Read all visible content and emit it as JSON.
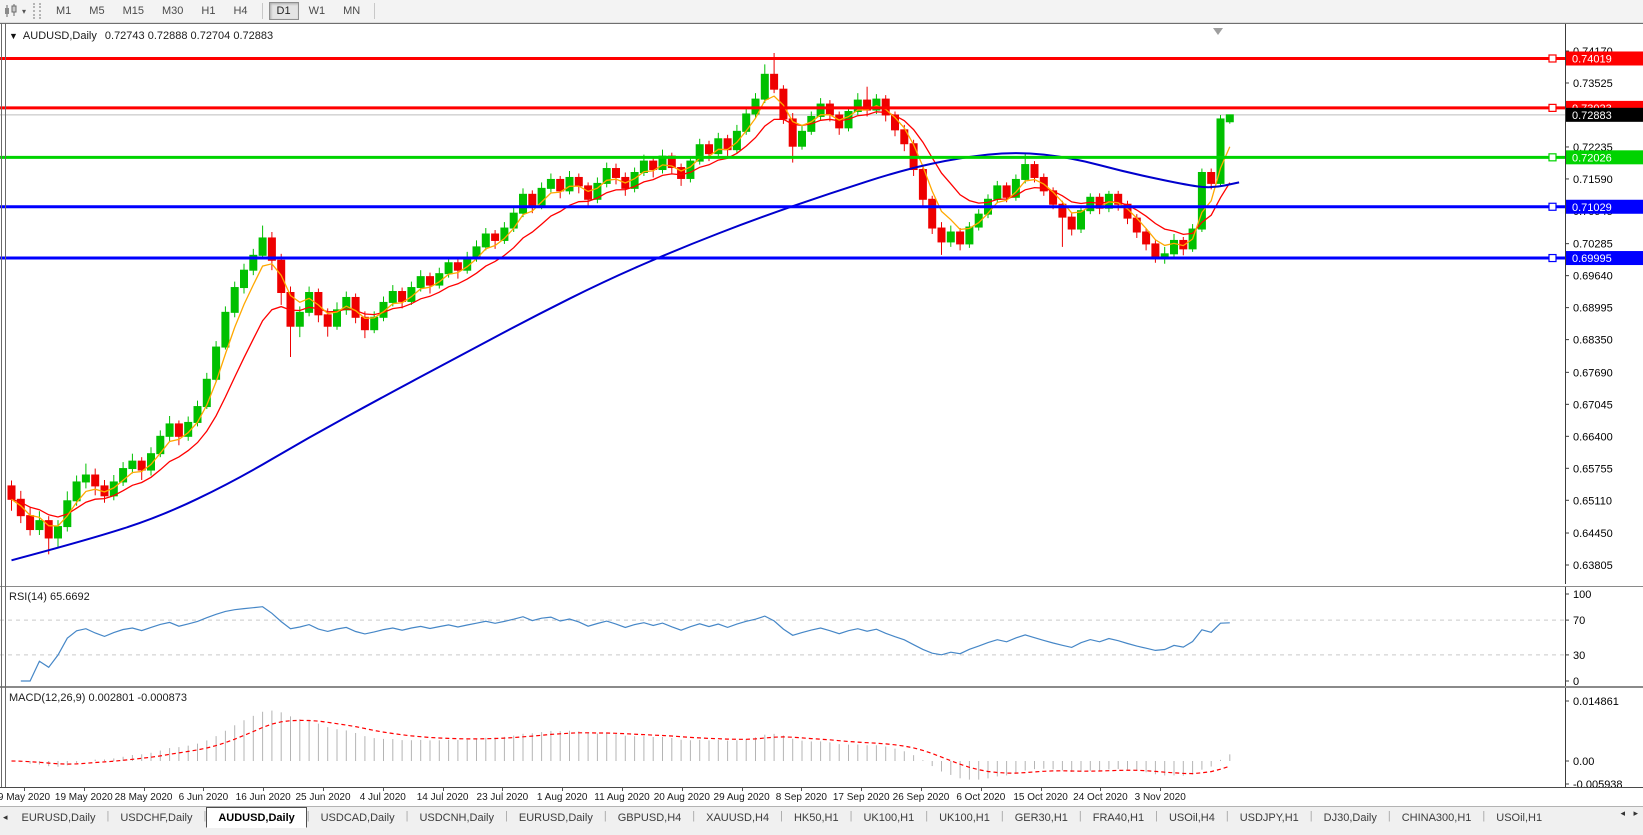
{
  "toolbar": {
    "timeframes": [
      "M1",
      "M5",
      "M15",
      "M30",
      "H1",
      "H4",
      "D1",
      "W1",
      "MN"
    ],
    "active_timeframe": "D1",
    "dropdown_icon": "▾"
  },
  "chart": {
    "symbol_title": "AUDUSD,Daily",
    "ohlc_display": "0.72743 0.72888 0.72704 0.72883",
    "collapse_icon": "▼"
  },
  "price_axis": {
    "labels": [
      "0.74170",
      "0.73525",
      "0.72880",
      "0.72235",
      "0.71590",
      "0.70945",
      "0.70285",
      "0.69640",
      "0.68995",
      "0.68350",
      "0.67690",
      "0.67045",
      "0.66400",
      "0.65755",
      "0.65110",
      "0.64450",
      "0.63805"
    ]
  },
  "price_tags": [
    {
      "value": "0.74019",
      "color": "#FF0000"
    },
    {
      "value": "0.73023",
      "color": "#FF0000"
    },
    {
      "value": "0.72883",
      "color": "#000000"
    },
    {
      "value": "0.72026",
      "color": "#00D300"
    },
    {
      "value": "0.71029",
      "color": "#0000FF"
    },
    {
      "value": "0.69995",
      "color": "#0000FF"
    }
  ],
  "hlines": [
    {
      "price": 0.74019,
      "color": "#FF0000"
    },
    {
      "price": 0.73023,
      "color": "#FF0000"
    },
    {
      "price": 0.72026,
      "color": "#00D300"
    },
    {
      "price": 0.71029,
      "color": "#0000FF"
    },
    {
      "price": 0.69995,
      "color": "#0000FF"
    }
  ],
  "current_price": {
    "value": 0.72883,
    "line_color": "#BDBDBD",
    "tag_color": "#000000"
  },
  "time_axis": {
    "labels": [
      "9 May 2020",
      "19 May 2020",
      "28 May 2020",
      "6 Jun 2020",
      "16 Jun 2020",
      "25 Jun 2020",
      "4 Jul 2020",
      "14 Jul 2020",
      "23 Jul 2020",
      "1 Aug 2020",
      "11 Aug 2020",
      "20 Aug 2020",
      "29 Aug 2020",
      "8 Sep 2020",
      "17 Sep 2020",
      "26 Sep 2020",
      "6 Oct 2020",
      "15 Oct 2020",
      "24 Oct 2020",
      "3 Nov 2020"
    ]
  },
  "rsi_panel": {
    "label": "RSI(14) 65.6692",
    "period": 14,
    "value": 65.6692,
    "axis_labels": [
      "100",
      "70",
      "30",
      "0"
    ],
    "axis_values": [
      100,
      70,
      30,
      0
    ],
    "upper_level": 70,
    "lower_level": 30,
    "line_color": "#4687C7",
    "level_color": "#C9C9C9"
  },
  "macd_panel": {
    "label": "MACD(12,26,9) 0.002801 -0.000873",
    "fast": 12,
    "slow": 26,
    "signal": 9,
    "macd_value": 0.002801,
    "signal_value": -0.000873,
    "axis_labels": [
      "0.014861",
      "0.00",
      "-0.005938"
    ],
    "axis_max": 0.014861,
    "axis_min": -0.005938,
    "histogram_color": "#B4B4B4",
    "signal_color": "#FF0000"
  },
  "tabs": {
    "left_arrow": "◂",
    "right_arrows": "◂ ▸",
    "items": [
      {
        "label": "EURUSD,Daily",
        "active": false
      },
      {
        "label": "USDCHF,Daily",
        "active": false
      },
      {
        "label": "AUDUSD,Daily",
        "active": true
      },
      {
        "label": "USDCAD,Daily",
        "active": false
      },
      {
        "label": "USDCNH,Daily",
        "active": false
      },
      {
        "label": "EURUSD,Daily",
        "active": false
      },
      {
        "label": "GBPUSD,H4",
        "active": false
      },
      {
        "label": "XAUUSD,H4",
        "active": false
      },
      {
        "label": "HK50,H1",
        "active": false
      },
      {
        "label": "UK100,H1",
        "active": false
      },
      {
        "label": "UK100,H1",
        "active": false
      },
      {
        "label": "GER30,H1",
        "active": false
      },
      {
        "label": "FRA40,H1",
        "active": false
      },
      {
        "label": "USOil,H4",
        "active": false
      },
      {
        "label": "USDJPY,H1",
        "active": false
      },
      {
        "label": "DJ30,Daily",
        "active": false
      },
      {
        "label": "CHINA300,H1",
        "active": false
      },
      {
        "label": "USOil,H1",
        "active": false
      }
    ]
  },
  "colors": {
    "bull": "#00C000",
    "bear": "#EE0000",
    "ma_fast": "#FFA800",
    "ma_mid": "#FF0000",
    "ma_slow": "#0000CD",
    "axis_text": "#000000",
    "shift_marker": "#9E9E9E"
  },
  "chart_data": {
    "type": "candlestick",
    "symbol": "AUDUSD",
    "timeframe": "Daily",
    "title": "AUDUSD,Daily",
    "current_bar_ohlc": {
      "open": 0.72743,
      "high": 0.72888,
      "low": 0.72704,
      "close": 0.72883
    },
    "y_axis_top": 0.7417,
    "y_axis_bottom": 0.63805,
    "x_tick_labels": [
      "9 May 2020",
      "19 May 2020",
      "28 May 2020",
      "6 Jun 2020",
      "16 Jun 2020",
      "25 Jun 2020",
      "4 Jul 2020",
      "14 Jul 2020",
      "23 Jul 2020",
      "1 Aug 2020",
      "11 Aug 2020",
      "20 Aug 2020",
      "29 Aug 2020",
      "8 Sep 2020",
      "17 Sep 2020",
      "26 Sep 2020",
      "6 Oct 2020",
      "15 Oct 2020",
      "24 Oct 2020",
      "3 Nov 2020"
    ],
    "ma_fast_period": 4,
    "ma_mid_period": 10,
    "ma_slow_points": [
      [
        0,
        0.639
      ],
      [
        8,
        0.643
      ],
      [
        16,
        0.6478
      ],
      [
        24,
        0.655
      ],
      [
        32,
        0.6638
      ],
      [
        40,
        0.672
      ],
      [
        48,
        0.68
      ],
      [
        56,
        0.688
      ],
      [
        64,
        0.6955
      ],
      [
        72,
        0.702
      ],
      [
        80,
        0.7078
      ],
      [
        88,
        0.713
      ],
      [
        96,
        0.7178
      ],
      [
        102,
        0.7202
      ],
      [
        108,
        0.7214
      ],
      [
        114,
        0.7202
      ],
      [
        120,
        0.7172
      ],
      [
        126,
        0.7148
      ],
      [
        129,
        0.714
      ],
      [
        132,
        0.7152
      ]
    ],
    "candles": [
      [
        0.654,
        0.6551,
        0.649,
        0.6513
      ],
      [
        0.6513,
        0.653,
        0.6465,
        0.648
      ],
      [
        0.648,
        0.6498,
        0.644,
        0.6452
      ],
      [
        0.6452,
        0.6489,
        0.6441,
        0.647
      ],
      [
        0.647,
        0.6479,
        0.6402,
        0.6435
      ],
      [
        0.6435,
        0.6471,
        0.6415,
        0.6458
      ],
      [
        0.6458,
        0.6529,
        0.6448,
        0.651
      ],
      [
        0.651,
        0.6561,
        0.65,
        0.6548
      ],
      [
        0.6548,
        0.6585,
        0.6535,
        0.6562
      ],
      [
        0.6562,
        0.6575,
        0.6521,
        0.654
      ],
      [
        0.654,
        0.6552,
        0.6506,
        0.652
      ],
      [
        0.652,
        0.6562,
        0.6511,
        0.6548
      ],
      [
        0.6548,
        0.6588,
        0.654,
        0.6575
      ],
      [
        0.6575,
        0.6605,
        0.6565,
        0.659
      ],
      [
        0.659,
        0.6598,
        0.6552,
        0.6572
      ],
      [
        0.6572,
        0.6618,
        0.6561,
        0.6605
      ],
      [
        0.6605,
        0.6652,
        0.6598,
        0.664
      ],
      [
        0.664,
        0.6681,
        0.663,
        0.6665
      ],
      [
        0.6665,
        0.6672,
        0.6622,
        0.664
      ],
      [
        0.664,
        0.668,
        0.6631,
        0.6668
      ],
      [
        0.6668,
        0.6712,
        0.666,
        0.67
      ],
      [
        0.67,
        0.6768,
        0.6695,
        0.6755
      ],
      [
        0.6755,
        0.6832,
        0.675,
        0.682
      ],
      [
        0.682,
        0.6902,
        0.6815,
        0.689
      ],
      [
        0.689,
        0.6952,
        0.688,
        0.694
      ],
      [
        0.694,
        0.6988,
        0.6928,
        0.6975
      ],
      [
        0.6975,
        0.7018,
        0.6965,
        0.7005
      ],
      [
        0.7005,
        0.7065,
        0.6998,
        0.704
      ],
      [
        0.704,
        0.7052,
        0.6975,
        0.6995
      ],
      [
        0.6995,
        0.7008,
        0.6905,
        0.693
      ],
      [
        0.693,
        0.6942,
        0.68,
        0.6862
      ],
      [
        0.6862,
        0.6902,
        0.684,
        0.689
      ],
      [
        0.689,
        0.6942,
        0.6882,
        0.693
      ],
      [
        0.693,
        0.6938,
        0.687,
        0.6885
      ],
      [
        0.6885,
        0.6898,
        0.6841,
        0.6862
      ],
      [
        0.6862,
        0.691,
        0.6855,
        0.6895
      ],
      [
        0.6895,
        0.6932,
        0.6885,
        0.692
      ],
      [
        0.692,
        0.6928,
        0.6868,
        0.688
      ],
      [
        0.688,
        0.6892,
        0.6838,
        0.6855
      ],
      [
        0.6855,
        0.6892,
        0.6848,
        0.688
      ],
      [
        0.688,
        0.6922,
        0.6872,
        0.691
      ],
      [
        0.691,
        0.6945,
        0.6902,
        0.6932
      ],
      [
        0.6932,
        0.694,
        0.6898,
        0.6912
      ],
      [
        0.6912,
        0.6952,
        0.6905,
        0.694
      ],
      [
        0.694,
        0.6975,
        0.6932,
        0.6962
      ],
      [
        0.6962,
        0.697,
        0.6928,
        0.6945
      ],
      [
        0.6945,
        0.698,
        0.6938,
        0.6968
      ],
      [
        0.6968,
        0.7002,
        0.696,
        0.699
      ],
      [
        0.699,
        0.6998,
        0.6958,
        0.6975
      ],
      [
        0.6975,
        0.7012,
        0.6968,
        0.7
      ],
      [
        0.7,
        0.7035,
        0.6992,
        0.7022
      ],
      [
        0.7022,
        0.706,
        0.7015,
        0.7048
      ],
      [
        0.7048,
        0.7056,
        0.7018,
        0.7035
      ],
      [
        0.7035,
        0.7072,
        0.7028,
        0.706
      ],
      [
        0.706,
        0.7102,
        0.7052,
        0.709
      ],
      [
        0.709,
        0.714,
        0.7082,
        0.7128
      ],
      [
        0.7128,
        0.7136,
        0.709,
        0.7105
      ],
      [
        0.7105,
        0.7152,
        0.7098,
        0.714
      ],
      [
        0.714,
        0.717,
        0.7132,
        0.7158
      ],
      [
        0.7158,
        0.7165,
        0.712,
        0.7135
      ],
      [
        0.7135,
        0.7175,
        0.7128,
        0.7162
      ],
      [
        0.7162,
        0.717,
        0.713,
        0.7145
      ],
      [
        0.7145,
        0.7152,
        0.7102,
        0.7118
      ],
      [
        0.7118,
        0.7162,
        0.711,
        0.715
      ],
      [
        0.715,
        0.7192,
        0.7142,
        0.718
      ],
      [
        0.718,
        0.719,
        0.7148,
        0.7162
      ],
      [
        0.7162,
        0.7172,
        0.7125,
        0.714
      ],
      [
        0.714,
        0.7182,
        0.7132,
        0.7172
      ],
      [
        0.7172,
        0.7208,
        0.7165,
        0.7195
      ],
      [
        0.7195,
        0.7202,
        0.7162,
        0.7178
      ],
      [
        0.7178,
        0.7218,
        0.717,
        0.7205
      ],
      [
        0.7205,
        0.7212,
        0.7168,
        0.7182
      ],
      [
        0.7182,
        0.719,
        0.7145,
        0.716
      ],
      [
        0.716,
        0.7205,
        0.7152,
        0.7195
      ],
      [
        0.7195,
        0.724,
        0.7188,
        0.7228
      ],
      [
        0.7228,
        0.7236,
        0.7195,
        0.721
      ],
      [
        0.721,
        0.7252,
        0.7202,
        0.724
      ],
      [
        0.724,
        0.7248,
        0.7202,
        0.7218
      ],
      [
        0.7218,
        0.7268,
        0.721,
        0.7255
      ],
      [
        0.7255,
        0.7302,
        0.7248,
        0.729
      ],
      [
        0.729,
        0.7332,
        0.7282,
        0.732
      ],
      [
        0.732,
        0.739,
        0.7312,
        0.737
      ],
      [
        0.737,
        0.7413,
        0.7332,
        0.734
      ],
      [
        0.734,
        0.7348,
        0.727,
        0.728
      ],
      [
        0.728,
        0.7292,
        0.7192,
        0.7225
      ],
      [
        0.7225,
        0.7268,
        0.7218,
        0.7255
      ],
      [
        0.7255,
        0.7295,
        0.7248,
        0.7285
      ],
      [
        0.7285,
        0.7322,
        0.7278,
        0.731
      ],
      [
        0.731,
        0.7318,
        0.7275,
        0.7288
      ],
      [
        0.7288,
        0.7295,
        0.7248,
        0.7262
      ],
      [
        0.7262,
        0.7305,
        0.7255,
        0.7295
      ],
      [
        0.7295,
        0.7332,
        0.7288,
        0.7318
      ],
      [
        0.7318,
        0.7345,
        0.7285,
        0.7298
      ],
      [
        0.7298,
        0.733,
        0.729,
        0.732
      ],
      [
        0.732,
        0.7328,
        0.7275,
        0.7288
      ],
      [
        0.7288,
        0.7295,
        0.7245,
        0.7258
      ],
      [
        0.7258,
        0.7268,
        0.7215,
        0.723
      ],
      [
        0.723,
        0.7238,
        0.7165,
        0.7178
      ],
      [
        0.7178,
        0.7188,
        0.7105,
        0.7118
      ],
      [
        0.7118,
        0.7125,
        0.7048,
        0.706
      ],
      [
        0.706,
        0.7072,
        0.7006,
        0.7032
      ],
      [
        0.7032,
        0.7065,
        0.7022,
        0.7052
      ],
      [
        0.7052,
        0.706,
        0.7015,
        0.7028
      ],
      [
        0.7028,
        0.7072,
        0.702,
        0.7062
      ],
      [
        0.7062,
        0.7098,
        0.7055,
        0.7088
      ],
      [
        0.7088,
        0.7128,
        0.708,
        0.7118
      ],
      [
        0.7118,
        0.7155,
        0.711,
        0.7145
      ],
      [
        0.7145,
        0.7152,
        0.7112,
        0.7122
      ],
      [
        0.7122,
        0.7168,
        0.7115,
        0.7158
      ],
      [
        0.7158,
        0.721,
        0.715,
        0.7188
      ],
      [
        0.7188,
        0.7195,
        0.7152,
        0.7162
      ],
      [
        0.7162,
        0.717,
        0.7125,
        0.7135
      ],
      [
        0.7135,
        0.7142,
        0.7098,
        0.7108
      ],
      [
        0.7108,
        0.7115,
        0.7022,
        0.7082
      ],
      [
        0.7082,
        0.709,
        0.7045,
        0.7058
      ],
      [
        0.7058,
        0.7102,
        0.705,
        0.7095
      ],
      [
        0.7095,
        0.713,
        0.7088,
        0.7122
      ],
      [
        0.7122,
        0.713,
        0.7088,
        0.71
      ],
      [
        0.71,
        0.7135,
        0.7092,
        0.7128
      ],
      [
        0.7128,
        0.7135,
        0.7095,
        0.7108
      ],
      [
        0.7108,
        0.7115,
        0.7068,
        0.708
      ],
      [
        0.708,
        0.7088,
        0.704,
        0.7052
      ],
      [
        0.7052,
        0.706,
        0.7015,
        0.7028
      ],
      [
        0.7028,
        0.7035,
        0.699,
        0.7002
      ],
      [
        0.7002,
        0.7022,
        0.6988,
        0.7008
      ],
      [
        0.7008,
        0.7048,
        0.7,
        0.7035
      ],
      [
        0.7035,
        0.7042,
        0.7005,
        0.7018
      ],
      [
        0.7018,
        0.7068,
        0.7012,
        0.7058
      ],
      [
        0.7058,
        0.718,
        0.7052,
        0.7172
      ],
      [
        0.7172,
        0.718,
        0.7138,
        0.715
      ],
      [
        0.715,
        0.7288,
        0.7146,
        0.728
      ],
      [
        0.72743,
        0.72888,
        0.72704,
        0.72883
      ]
    ]
  }
}
